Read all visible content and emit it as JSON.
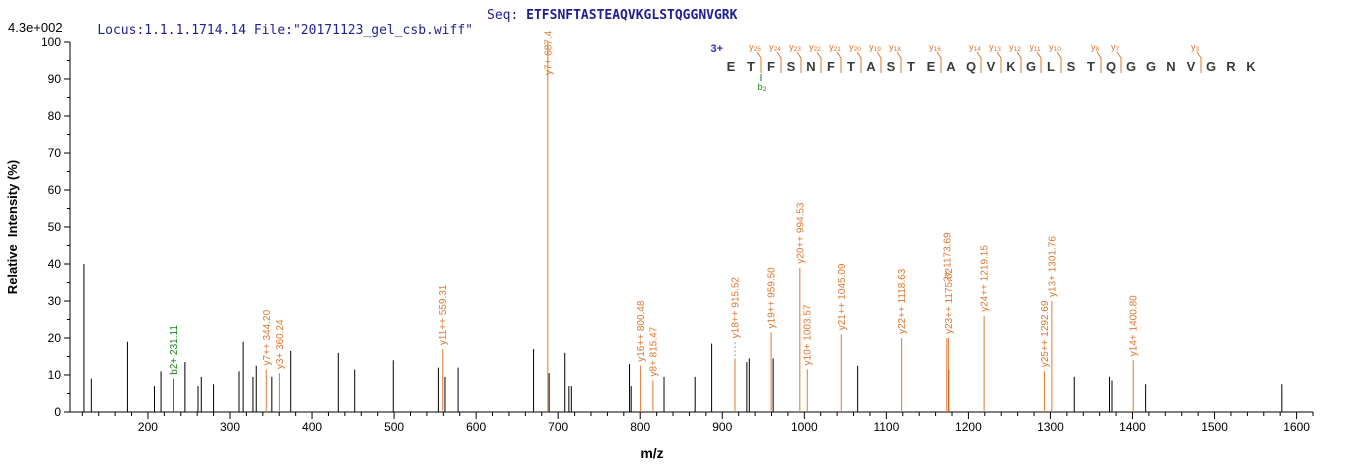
{
  "header": {
    "locus_text": "Locus:1.1.1.1714.14 File:\"20171123_gel_csb.wiff\"",
    "seq_label": "Seq: ",
    "seq_value": "ETFSNFTASTEAQVKGLSTQGGNVGRK",
    "base_peak_intensity": "4.3e+002"
  },
  "colors": {
    "y_ion": "#E0772F",
    "b_ion": "#168316",
    "peak": "#000000",
    "header_text": "#1F1F93",
    "charge_blue": "#2B2BD5",
    "residue_gray": "#3B3B3B",
    "leader_gray": "#999999"
  },
  "sequence_panel": {
    "charge_label": "3+",
    "residues": "ETFSNFTASTEAQVKGLSTQGGNVGRK",
    "y_marks": [
      {
        "ion": "y25",
        "gap": 2
      },
      {
        "ion": "y24",
        "gap": 3
      },
      {
        "ion": "y23",
        "gap": 4
      },
      {
        "ion": "y22",
        "gap": 5
      },
      {
        "ion": "y21",
        "gap": 6
      },
      {
        "ion": "y20",
        "gap": 7
      },
      {
        "ion": "y19",
        "gap": 8
      },
      {
        "ion": "y18",
        "gap": 9
      },
      {
        "ion": "y16",
        "gap": 11
      },
      {
        "ion": "y14",
        "gap": 13
      },
      {
        "ion": "y13",
        "gap": 14
      },
      {
        "ion": "y12",
        "gap": 15
      },
      {
        "ion": "y11",
        "gap": 16
      },
      {
        "ion": "y10",
        "gap": 17
      },
      {
        "ion": "y8",
        "gap": 19
      },
      {
        "ion": "y7",
        "gap": 20
      },
      {
        "ion": "y3",
        "gap": 24
      }
    ],
    "b_marks": [
      {
        "ion": "b2",
        "gap": 2
      }
    ]
  },
  "chart_data": {
    "type": "bar",
    "subtype": "ms2-centroid-mass-spectrum",
    "title": "",
    "xlabel": "m/z",
    "ylabel": "Relative  Intensity (%)",
    "xlim": [
      105,
      1620
    ],
    "ylim": [
      0,
      100
    ],
    "grid": false,
    "x_major_tick_start": 200,
    "x_major_tick_step": 100,
    "x_major_tick_end": 1600,
    "x_minor_tick_step": 20,
    "y_major_tick_step": 10,
    "y_minor_tick_step": 5,
    "annotated_peaks": [
      {
        "label": "b2+ 231.11",
        "mz": 231.11,
        "intensity": 9,
        "ion": "b"
      },
      {
        "label": "y7++ 344.20",
        "mz": 344.2,
        "intensity": 11.5,
        "ion": "y"
      },
      {
        "label": "y3+ 360.24",
        "mz": 360.24,
        "intensity": 10.5,
        "ion": "y"
      },
      {
        "label": "y11++ 559.31",
        "mz": 559.31,
        "intensity": 17,
        "ion": "y"
      },
      {
        "label": "y7+ 687.4",
        "mz": 687.4,
        "intensity": 100,
        "ion": "y"
      },
      {
        "label": "y16++ 800.48",
        "mz": 800.48,
        "intensity": 12.5,
        "ion": "y"
      },
      {
        "label": "y8+ 815.47",
        "mz": 815.47,
        "intensity": 8.5,
        "ion": "y"
      },
      {
        "label": "y18++ 915.52",
        "mz": 915.52,
        "intensity": 14,
        "ion": "y",
        "dashed_leader": true
      },
      {
        "label": "y19++ 959.50",
        "mz": 959.5,
        "intensity": 21.5,
        "ion": "y"
      },
      {
        "label": "y20++ 994.53",
        "mz": 994.53,
        "intensity": 39,
        "ion": "y"
      },
      {
        "label": "y10+ 1003.57",
        "mz": 1003.57,
        "intensity": 11.5,
        "ion": "y"
      },
      {
        "label": "y21++ 1045.09",
        "mz": 1045.09,
        "intensity": 21,
        "ion": "y"
      },
      {
        "label": "y22++ 1118.63",
        "mz": 1118.63,
        "intensity": 20,
        "ion": "y"
      },
      {
        "label": "2+ 1173.69",
        "mz": 1173.69,
        "intensity": 20,
        "ion": "y",
        "label_lift": 52
      },
      {
        "label": "y23++ 1175.62",
        "mz": 1175.62,
        "intensity": 20,
        "ion": "y"
      },
      {
        "label": "y24++ 1219.15",
        "mz": 1219.15,
        "intensity": 26,
        "ion": "y"
      },
      {
        "label": "y25++ 1292.69",
        "mz": 1292.69,
        "intensity": 11,
        "ion": "y"
      },
      {
        "label": "y13+ 1301.76",
        "mz": 1301.76,
        "intensity": 30,
        "ion": "y"
      },
      {
        "label": "y14+ 1400.80",
        "mz": 1400.8,
        "intensity": 14,
        "ion": "y"
      }
    ],
    "unlabeled_peaks": [
      [
        122,
        40
      ],
      [
        131,
        9
      ],
      [
        175,
        19
      ],
      [
        208,
        7
      ],
      [
        216,
        11
      ],
      [
        245,
        13.5
      ],
      [
        261,
        7
      ],
      [
        265,
        9.5
      ],
      [
        280,
        7.5
      ],
      [
        311,
        11
      ],
      [
        316,
        19
      ],
      [
        328,
        9.5
      ],
      [
        332,
        12.5
      ],
      [
        351,
        9.5
      ],
      [
        374,
        16.5
      ],
      [
        432,
        16
      ],
      [
        452,
        11.5
      ],
      [
        499,
        14
      ],
      [
        554,
        12
      ],
      [
        562,
        9.5
      ],
      [
        578,
        12
      ],
      [
        670,
        17
      ],
      [
        689,
        10.5
      ],
      [
        708,
        16
      ],
      [
        713,
        7
      ],
      [
        716,
        7
      ],
      [
        787,
        13
      ],
      [
        789,
        7
      ],
      [
        829,
        9.5
      ],
      [
        867,
        9.5
      ],
      [
        887,
        18.5
      ],
      [
        930,
        13.5
      ],
      [
        933,
        14.5
      ],
      [
        962,
        14.5
      ],
      [
        1065,
        12.5
      ],
      [
        1176,
        11.5
      ],
      [
        1329,
        9.5
      ],
      [
        1372,
        9.5
      ],
      [
        1375,
        8.5
      ],
      [
        1416,
        7.5
      ],
      [
        1582,
        7.5
      ]
    ]
  }
}
